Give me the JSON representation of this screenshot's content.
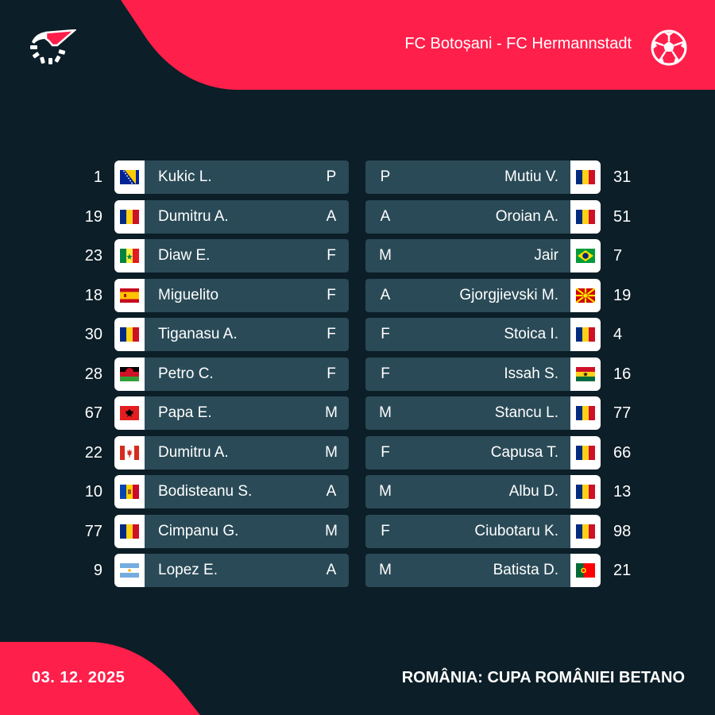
{
  "header": {
    "match_title": "FC Botoșani - FC Hermannstadt",
    "logo_icon": "flashscore-logo-icon",
    "sport_icon": "football-icon"
  },
  "footer": {
    "date": "03. 12. 2025",
    "competition": "ROMÂNIA: CUPA ROMÂNIEI BETANO"
  },
  "colors": {
    "background": "#0c1e27",
    "accent": "#ff1f4b",
    "row_bar": "#2a4a57"
  },
  "home": [
    {
      "number": "1",
      "flag": "bih",
      "name": "Kukic L.",
      "pos": "P"
    },
    {
      "number": "19",
      "flag": "rou",
      "name": "Dumitru A.",
      "pos": "A"
    },
    {
      "number": "23",
      "flag": "sen",
      "name": "Diaw E.",
      "pos": "F"
    },
    {
      "number": "18",
      "flag": "esp",
      "name": "Miguelito",
      "pos": "F"
    },
    {
      "number": "30",
      "flag": "rou",
      "name": "Tiganasu A.",
      "pos": "F"
    },
    {
      "number": "28",
      "flag": "mwi",
      "name": "Petro C.",
      "pos": "F"
    },
    {
      "number": "67",
      "flag": "alb",
      "name": "Papa E.",
      "pos": "M"
    },
    {
      "number": "22",
      "flag": "can",
      "name": "Dumitru A.",
      "pos": "M"
    },
    {
      "number": "10",
      "flag": "mda",
      "name": "Bodisteanu S.",
      "pos": "A"
    },
    {
      "number": "77",
      "flag": "rou",
      "name": "Cimpanu G.",
      "pos": "M"
    },
    {
      "number": "9",
      "flag": "arg",
      "name": "Lopez E.",
      "pos": "A"
    }
  ],
  "away": [
    {
      "number": "31",
      "flag": "rou",
      "name": "Mutiu V.",
      "pos": "P"
    },
    {
      "number": "51",
      "flag": "rou",
      "name": "Oroian A.",
      "pos": "A"
    },
    {
      "number": "7",
      "flag": "bra",
      "name": "Jair",
      "pos": "M"
    },
    {
      "number": "19",
      "flag": "mkd",
      "name": "Gjorgjievski M.",
      "pos": "A"
    },
    {
      "number": "4",
      "flag": "rou",
      "name": "Stoica I.",
      "pos": "F"
    },
    {
      "number": "16",
      "flag": "gha",
      "name": "Issah S.",
      "pos": "F"
    },
    {
      "number": "77",
      "flag": "rou",
      "name": "Stancu L.",
      "pos": "M"
    },
    {
      "number": "66",
      "flag": "rou",
      "name": "Capusa T.",
      "pos": "F"
    },
    {
      "number": "13",
      "flag": "rou",
      "name": "Albu D.",
      "pos": "M"
    },
    {
      "number": "98",
      "flag": "rou",
      "name": "Ciubotaru K.",
      "pos": "F"
    },
    {
      "number": "21",
      "flag": "por",
      "name": "Batista D.",
      "pos": "M"
    }
  ]
}
